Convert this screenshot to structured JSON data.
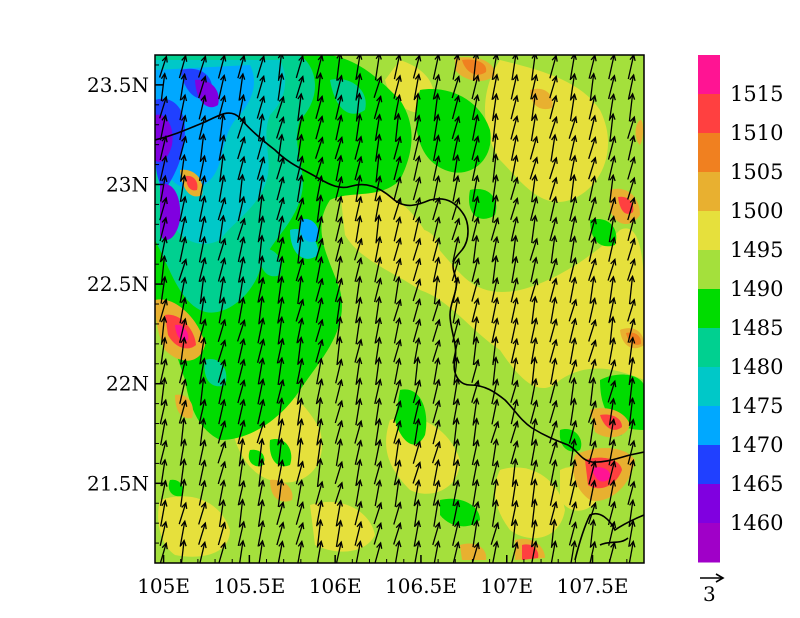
{
  "map": {
    "lon_range": [
      104.95,
      107.8
    ],
    "lat_range": [
      21.1,
      23.65
    ],
    "lon_ticks": [
      105,
      105.5,
      106,
      106.5,
      107,
      107.5
    ],
    "lon_tick_labels": [
      "105E",
      "105.5E",
      "106E",
      "106.5E",
      "107E",
      "107.5E"
    ],
    "lat_ticks": [
      21.5,
      22,
      22.5,
      23,
      23.5
    ],
    "lat_tick_labels": [
      "21.5N",
      "22N",
      "22.5N",
      "23N",
      "23.5N"
    ],
    "vector": {
      "reference_label": "3",
      "direction": "north-north-east",
      "color": "#000000"
    }
  },
  "colorbar": {
    "levels": [
      "1515",
      "1510",
      "1505",
      "1500",
      "1495",
      "1490",
      "1485",
      "1480",
      "1475",
      "1470",
      "1465",
      "1460"
    ],
    "colors": [
      "#ff1493",
      "#ff4040",
      "#f08020",
      "#e8b030",
      "#e6e03c",
      "#a4e03c",
      "#00dc00",
      "#00d090",
      "#00c8c8",
      "#00a8ff",
      "#2040ff",
      "#8000e0",
      "#a000c8"
    ]
  },
  "chart_data": {
    "type": "heatmap",
    "title": "",
    "xlabel": "",
    "ylabel": "",
    "xlim": [
      104.95,
      107.8
    ],
    "ylim": [
      21.1,
      23.65
    ],
    "x_ticks": [
      "105E",
      "105.5E",
      "106E",
      "106.5E",
      "107E",
      "107.5E"
    ],
    "y_ticks": [
      "21.5N",
      "22N",
      "22.5N",
      "23N",
      "23.5N"
    ],
    "colorbar_levels": [
      1460,
      1465,
      1470,
      1475,
      1480,
      1485,
      1490,
      1495,
      1500,
      1505,
      1510,
      1515
    ],
    "overlay": "wind vectors (reference 3)"
  }
}
